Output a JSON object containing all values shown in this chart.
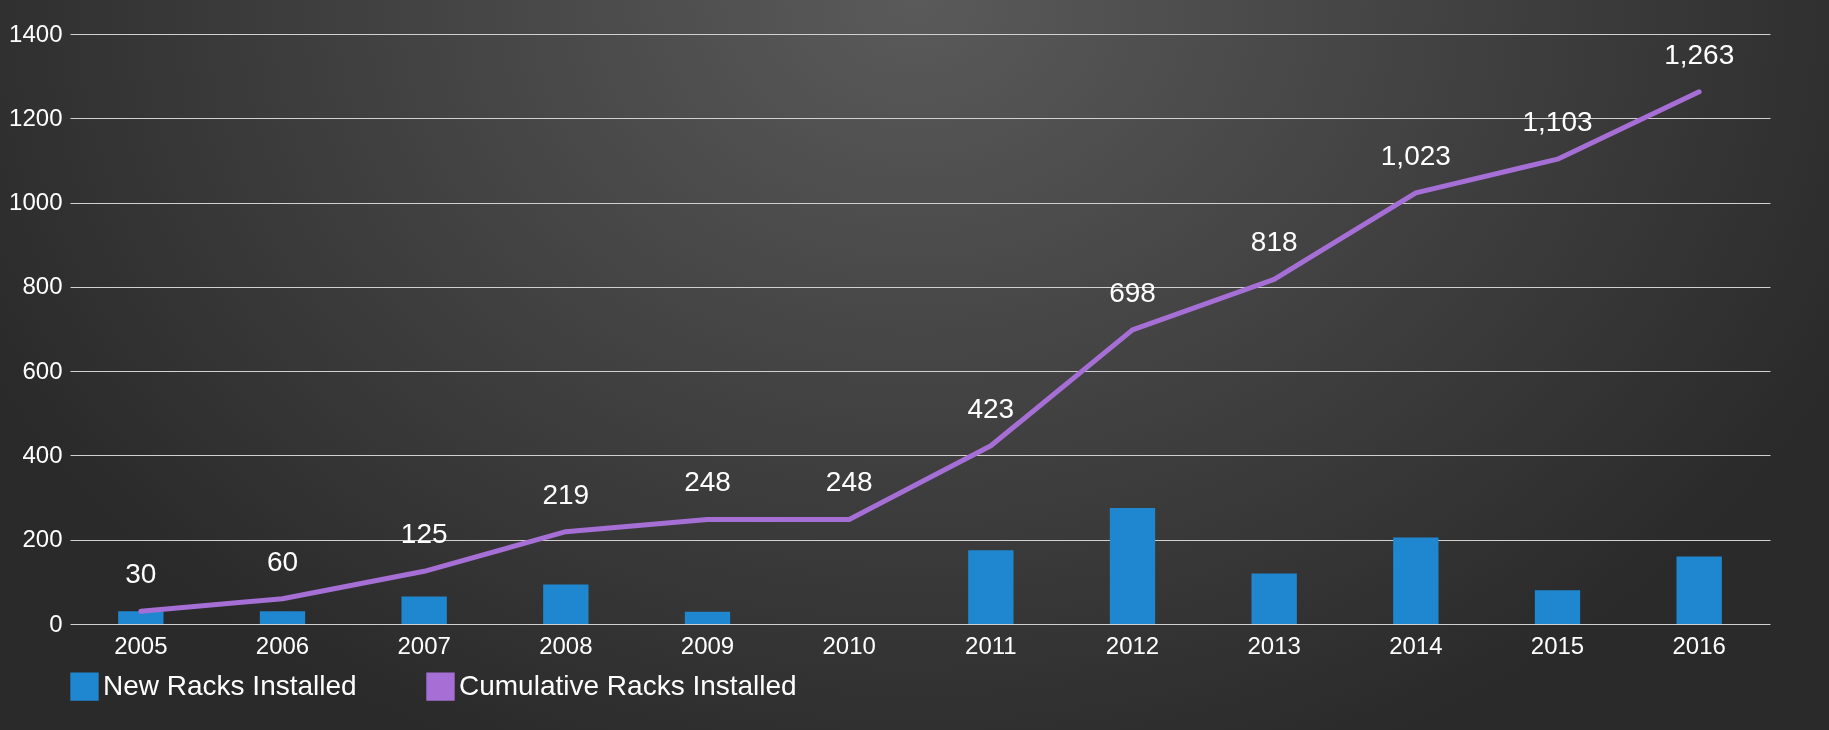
{
  "chart_data": {
    "type": "bar",
    "categories": [
      "2005",
      "2006",
      "2007",
      "2008",
      "2009",
      "2010",
      "2011",
      "2012",
      "2013",
      "2014",
      "2015",
      "2016"
    ],
    "series": [
      {
        "name": "New Racks Installed",
        "color": "#1f87cf",
        "values": [
          30,
          30,
          65,
          94,
          29,
          0,
          175,
          275,
          120,
          205,
          80,
          160
        ]
      },
      {
        "name": "Cumulative Racks Installed",
        "type": "line",
        "color": "#a66fd6",
        "values": [
          30,
          60,
          125,
          219,
          248,
          248,
          423,
          698,
          818,
          1023,
          1103,
          1263
        ],
        "value_labels": [
          "30",
          "60",
          "125",
          "219",
          "248",
          "248",
          "423",
          "698",
          "818",
          "1,023",
          "1,103",
          "1,263"
        ]
      }
    ],
    "ylim": [
      0,
      1400
    ],
    "yticks": [
      0,
      200,
      400,
      600,
      800,
      1000,
      1200,
      1400
    ],
    "grid": "y",
    "legend": "bottom"
  }
}
